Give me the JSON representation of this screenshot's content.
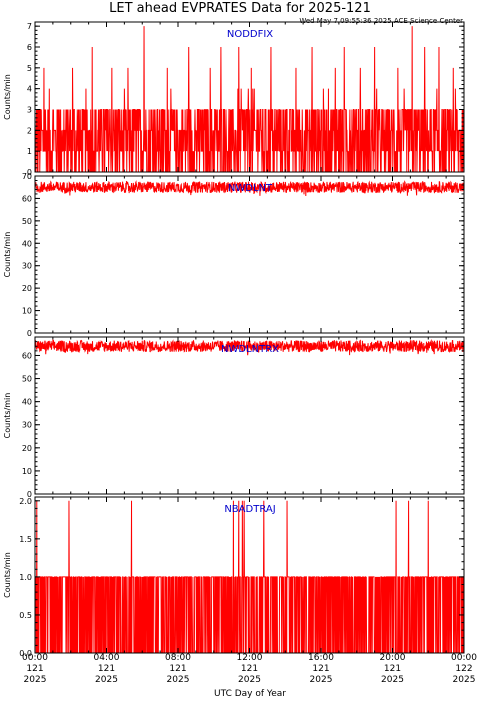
{
  "title": "LET ahead EVPRATES Data for 2025-121",
  "timestamp": "Wed May  7 09:55:36 2025 ACE Science Center",
  "xlabel": "UTC Day of Year",
  "colors": {
    "trace": "#ff0000",
    "panel_label": "#0000cc",
    "axis": "#000000"
  },
  "chart_data": [
    {
      "type": "line",
      "label": "NODDFIX",
      "ylabel": "Counts/min",
      "ylim": [
        0,
        7.2
      ],
      "yticks": [
        "0",
        "1",
        "2",
        "3",
        "4",
        "5",
        "6",
        "7"
      ],
      "yticks_values": [
        0,
        1,
        2,
        3,
        4,
        5,
        6,
        7
      ],
      "baseline": [
        0,
        3
      ],
      "frequent_peaks": 4,
      "peaks": [
        {
          "x": 3.2,
          "y": 6
        },
        {
          "x": 6.1,
          "y": 7
        },
        {
          "x": 8.6,
          "y": 6
        },
        {
          "x": 10.4,
          "y": 6
        },
        {
          "x": 11.4,
          "y": 6
        },
        {
          "x": 13.2,
          "y": 6
        },
        {
          "x": 15.5,
          "y": 6
        },
        {
          "x": 17.3,
          "y": 6
        },
        {
          "x": 19.0,
          "y": 6
        },
        {
          "x": 21.1,
          "y": 7
        },
        {
          "x": 21.8,
          "y": 6
        },
        {
          "x": 22.6,
          "y": 6
        },
        {
          "x": 0.5,
          "y": 5
        },
        {
          "x": 2.1,
          "y": 5
        },
        {
          "x": 4.3,
          "y": 5
        },
        {
          "x": 5.2,
          "y": 5
        },
        {
          "x": 7.4,
          "y": 5
        },
        {
          "x": 9.8,
          "y": 5
        },
        {
          "x": 12.1,
          "y": 5
        },
        {
          "x": 14.6,
          "y": 5
        },
        {
          "x": 16.8,
          "y": 5
        },
        {
          "x": 18.2,
          "y": 5
        },
        {
          "x": 20.3,
          "y": 5
        },
        {
          "x": 23.4,
          "y": 5
        }
      ]
    },
    {
      "type": "line",
      "label": "NWDLNT",
      "ylabel": "Counts/min",
      "ylim": [
        0,
        70
      ],
      "yticks": [
        "0",
        "10",
        "20",
        "30",
        "40",
        "50",
        "60",
        "70"
      ],
      "yticks_values": [
        0,
        10,
        20,
        30,
        40,
        50,
        60,
        70
      ],
      "band": [
        62,
        68
      ],
      "mean": 65.5
    },
    {
      "type": "line",
      "label": "NWDLNTRX",
      "ylabel": "Counts/min",
      "ylim": [
        0,
        68
      ],
      "yticks": [
        "0",
        "10",
        "20",
        "30",
        "40",
        "50",
        "60"
      ],
      "yticks_values": [
        0,
        10,
        20,
        30,
        40,
        50,
        60
      ],
      "band": [
        61,
        67
      ],
      "mean": 64.5
    },
    {
      "type": "line",
      "label": "NBADTRAJ",
      "ylabel": "Counts/min",
      "ylim": [
        0,
        2.05
      ],
      "yticks": [
        "0.0",
        "0.5",
        "1.0",
        "1.5",
        "2.0"
      ],
      "yticks_values": [
        0,
        0.5,
        1,
        1.5,
        2
      ],
      "levels": [
        0,
        1
      ],
      "spikes": [
        0.1,
        1.9,
        5.4,
        11.1,
        11.4,
        11.6,
        11.7,
        12.8,
        14.1,
        20.2,
        20.9,
        22.0
      ]
    }
  ],
  "xaxis": {
    "range": [
      0,
      24
    ],
    "ticks": [
      {
        "x": 0,
        "time": "00:00",
        "day": "121",
        "year": "2025"
      },
      {
        "x": 4,
        "time": "04:00",
        "day": "121",
        "year": "2025"
      },
      {
        "x": 8,
        "time": "08:00",
        "day": "121",
        "year": "2025"
      },
      {
        "x": 12,
        "time": "12:00",
        "day": "121",
        "year": "2025"
      },
      {
        "x": 16,
        "time": "16:00",
        "day": "121",
        "year": "2025"
      },
      {
        "x": 20,
        "time": "20:00",
        "day": "121",
        "year": "2025"
      },
      {
        "x": 24,
        "time": "00:00",
        "day": "122",
        "year": "2025"
      }
    ]
  }
}
